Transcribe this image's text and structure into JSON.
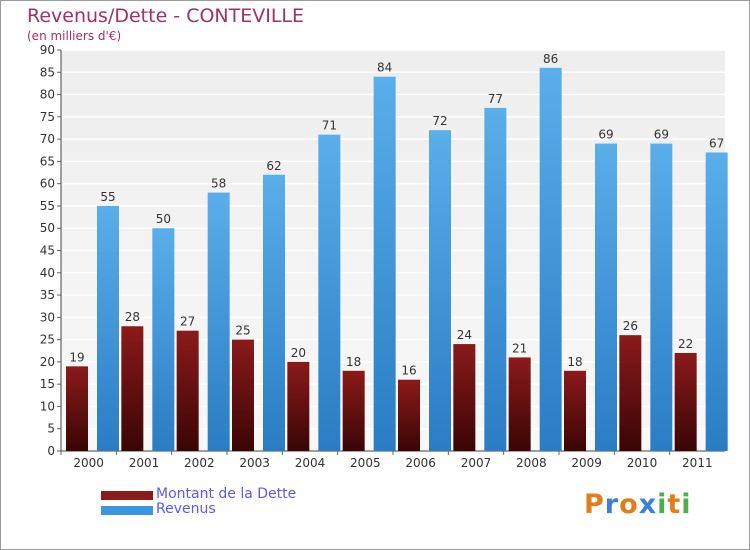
{
  "title": "Revenus/Dette - CONTEVILLE",
  "subtitle": "(en milliers d'€)",
  "chart_data": {
    "type": "bar",
    "categories": [
      "2000",
      "2001",
      "2002",
      "2003",
      "2004",
      "2005",
      "2006",
      "2007",
      "2008",
      "2009",
      "2010",
      "2011"
    ],
    "series": [
      {
        "name": "Montant de la Dette",
        "color": "#8b1a1a",
        "values": [
          19,
          28,
          27,
          25,
          20,
          18,
          16,
          24,
          21,
          18,
          26,
          22
        ]
      },
      {
        "name": "Revenus",
        "color": "#3a96de",
        "values": [
          55,
          50,
          58,
          62,
          71,
          84,
          72,
          77,
          86,
          69,
          69,
          67
        ]
      }
    ],
    "ylim": [
      0,
      90
    ],
    "yticks": [
      0,
      5,
      10,
      15,
      20,
      25,
      30,
      35,
      40,
      45,
      50,
      55,
      60,
      65,
      70,
      75,
      80,
      85,
      90
    ],
    "grid": true,
    "legend_position": "bottom-left"
  },
  "legend": {
    "debt_label": "Montant de la Dette",
    "revenue_label": "Revenus"
  },
  "logo": {
    "letters": [
      "P",
      "r",
      "o",
      "x",
      "i",
      "t",
      "i"
    ],
    "colors": [
      "#e07f1a",
      "#3b7fd6",
      "#e07f1a",
      "#3b7fd6",
      "#4bb04b",
      "#e07f1a",
      "#4bb04b"
    ]
  }
}
